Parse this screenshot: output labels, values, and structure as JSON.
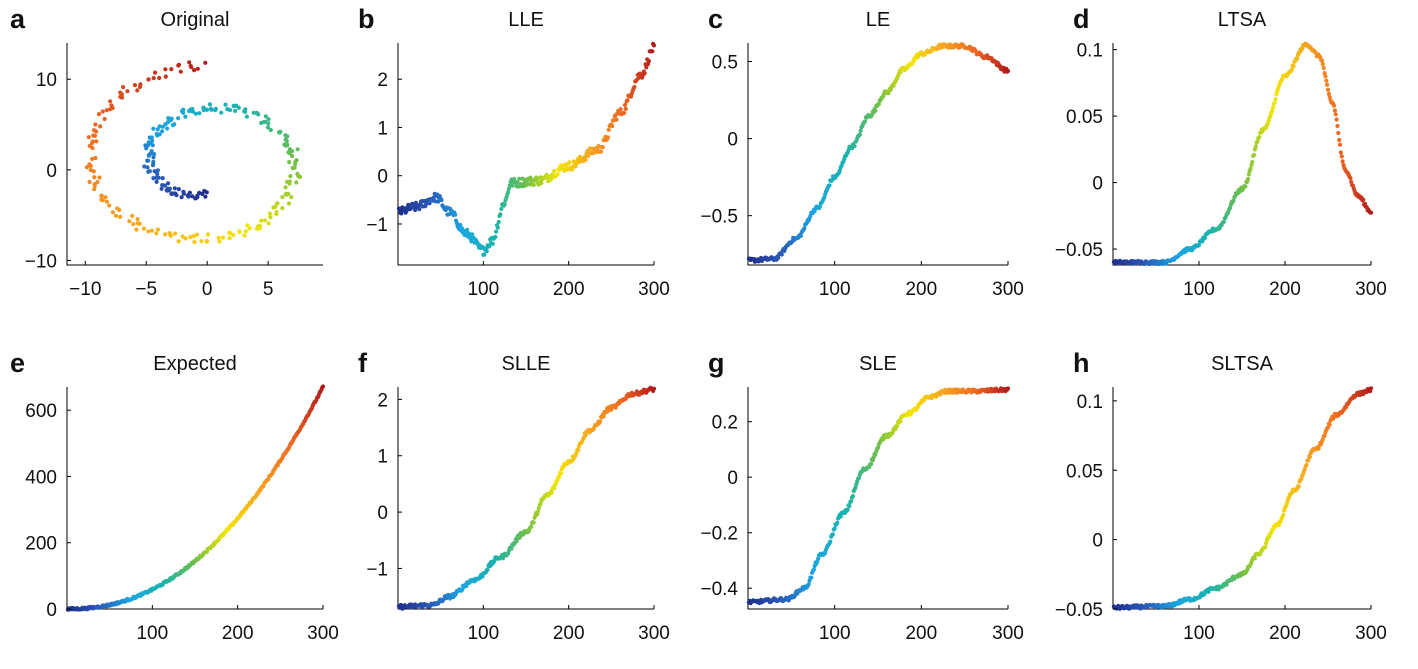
{
  "chart_data": [
    {
      "label": "a",
      "title": "Original",
      "type": "scatter",
      "curve": "spiral",
      "xlim": [
        -11.5,
        9.5
      ],
      "ylim": [
        -10.5,
        14
      ],
      "xticks": [
        {
          "v": -10,
          "t": "−10"
        },
        {
          "v": -5,
          "t": "−5"
        },
        {
          "v": 0,
          "t": "0"
        },
        {
          "v": 5,
          "t": "5"
        }
      ],
      "yticks": [
        {
          "v": -10,
          "t": "−10"
        },
        {
          "v": 0,
          "t": "0"
        },
        {
          "v": 10,
          "t": "10"
        }
      ]
    },
    {
      "label": "b",
      "title": "LLE",
      "type": "scatter",
      "curve": "lle",
      "xlim": [
        0,
        300
      ],
      "ylim": [
        -1.85,
        2.75
      ],
      "xticks": [
        {
          "v": 100,
          "t": "100"
        },
        {
          "v": 200,
          "t": "200"
        },
        {
          "v": 300,
          "t": "300"
        }
      ],
      "yticks": [
        {
          "v": -1,
          "t": "−1"
        },
        {
          "v": 0,
          "t": "0"
        },
        {
          "v": 1,
          "t": "1"
        },
        {
          "v": 2,
          "t": "2"
        }
      ]
    },
    {
      "label": "c",
      "title": "LE",
      "type": "scatter",
      "curve": "le",
      "xlim": [
        0,
        300
      ],
      "ylim": [
        -0.82,
        0.62
      ],
      "xticks": [
        {
          "v": 100,
          "t": "100"
        },
        {
          "v": 200,
          "t": "200"
        },
        {
          "v": 300,
          "t": "300"
        }
      ],
      "yticks": [
        {
          "v": -0.5,
          "t": "−0.5"
        },
        {
          "v": 0,
          "t": "0"
        },
        {
          "v": 0.5,
          "t": "0.5"
        }
      ]
    },
    {
      "label": "d",
      "title": "LTSA",
      "type": "scatter",
      "curve": "ltsa",
      "xlim": [
        0,
        300
      ],
      "ylim": [
        -0.062,
        0.105
      ],
      "xticks": [
        {
          "v": 100,
          "t": "100"
        },
        {
          "v": 200,
          "t": "200"
        },
        {
          "v": 300,
          "t": "300"
        }
      ],
      "yticks": [
        {
          "v": -0.05,
          "t": "−0.05"
        },
        {
          "v": 0,
          "t": "0"
        },
        {
          "v": 0.05,
          "t": "0.05"
        },
        {
          "v": 0.1,
          "t": "0.1"
        }
      ]
    },
    {
      "label": "e",
      "title": "Expected",
      "type": "scatter",
      "curve": "expected",
      "xlim": [
        0,
        300
      ],
      "ylim": [
        0,
        670
      ],
      "xticks": [
        {
          "v": 100,
          "t": "100"
        },
        {
          "v": 200,
          "t": "200"
        },
        {
          "v": 300,
          "t": "300"
        }
      ],
      "yticks": [
        {
          "v": 0,
          "t": "0"
        },
        {
          "v": 200,
          "t": "200"
        },
        {
          "v": 400,
          "t": "400"
        },
        {
          "v": 600,
          "t": "600"
        }
      ]
    },
    {
      "label": "f",
      "title": "SLLE",
      "type": "scatter",
      "curve": "slle",
      "xlim": [
        0,
        300
      ],
      "ylim": [
        -1.72,
        2.22
      ],
      "xticks": [
        {
          "v": 100,
          "t": "100"
        },
        {
          "v": 200,
          "t": "200"
        },
        {
          "v": 300,
          "t": "300"
        }
      ],
      "yticks": [
        {
          "v": -1,
          "t": "−1"
        },
        {
          "v": 0,
          "t": "0"
        },
        {
          "v": 1,
          "t": "1"
        },
        {
          "v": 2,
          "t": "2"
        }
      ]
    },
    {
      "label": "g",
      "title": "SLE",
      "type": "scatter",
      "curve": "sle",
      "xlim": [
        0,
        300
      ],
      "ylim": [
        -0.475,
        0.325
      ],
      "xticks": [
        {
          "v": 100,
          "t": "100"
        },
        {
          "v": 200,
          "t": "200"
        },
        {
          "v": 300,
          "t": "300"
        }
      ],
      "yticks": [
        {
          "v": -0.4,
          "t": "−0.4"
        },
        {
          "v": -0.2,
          "t": "−0.2"
        },
        {
          "v": 0,
          "t": "0"
        },
        {
          "v": 0.2,
          "t": "0.2"
        }
      ]
    },
    {
      "label": "h",
      "title": "SLTSA",
      "type": "scatter",
      "curve": "sltsa",
      "xlim": [
        0,
        300
      ],
      "ylim": [
        -0.05,
        0.11
      ],
      "xticks": [
        {
          "v": 100,
          "t": "100"
        },
        {
          "v": 200,
          "t": "200"
        },
        {
          "v": 300,
          "t": "300"
        }
      ],
      "yticks": [
        {
          "v": -0.05,
          "t": "−0.05"
        },
        {
          "v": 0,
          "t": "0"
        },
        {
          "v": 0.05,
          "t": "0.05"
        },
        {
          "v": 0.1,
          "t": "0.1"
        }
      ]
    }
  ],
  "colormap": [
    "#1f2e8a",
    "#2b59b8",
    "#1ba6e0",
    "#19b3b0",
    "#6fbf4a",
    "#f5e600",
    "#f5a623",
    "#ef6a22",
    "#b31b1b"
  ],
  "n_points": 300
}
